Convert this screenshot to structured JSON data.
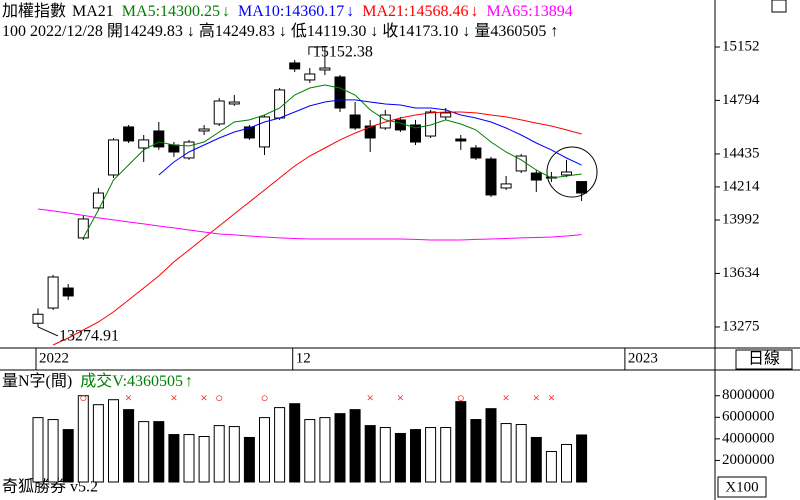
{
  "chart_data": {
    "type": "candlestick",
    "title": "加權指數",
    "subtitle": "MA21",
    "info": [
      "100",
      "2022/12/28",
      "開14249.83",
      "↓",
      "高14249.83",
      "↓",
      "低14119.30",
      "↓",
      "收14173.10",
      "↓",
      "量4360505",
      "↑"
    ],
    "period_label": "日線",
    "high_label": "15152.38",
    "low_label": "13274.91",
    "categories": [
      "2022",
      null,
      null,
      null,
      null,
      null,
      null,
      null,
      null,
      null,
      null,
      null,
      null,
      null,
      null,
      null,
      null,
      "12",
      null,
      null,
      null,
      null,
      null,
      null,
      null,
      null,
      null,
      null,
      null,
      null,
      null,
      null,
      null,
      null,
      null,
      null,
      null,
      null,
      null,
      "2023",
      null,
      null,
      null,
      null,
      null
    ],
    "open": [
      13300,
      13402,
      13536,
      13872,
      14073,
      14294,
      14616,
      14475,
      14589,
      14495,
      14408,
      14589,
      14636,
      14770,
      14616,
      14482,
      14676,
      15045,
      14931,
      14998,
      14951,
      14696,
      14622,
      14609,
      14663,
      14629,
      14555,
      14683,
      14535,
      14475,
      14401,
      14207,
      14321,
      14307,
      14274,
      14294,
      14249.83,
      null,
      null,
      null,
      null,
      null,
      null,
      null,
      null
    ],
    "high": [
      13400,
      13624,
      13563,
      14026,
      14207,
      14542,
      14629,
      14562,
      14649,
      14515,
      14529,
      14629,
      14810,
      14830,
      14629,
      14696,
      14877,
      15065,
      15011,
      15152.38,
      14964,
      14783,
      14663,
      14730,
      14683,
      14663,
      14730,
      14743,
      14562,
      14495,
      14415,
      14287,
      14435,
      14327,
      14314,
      14395,
      14249.83,
      null,
      null,
      null,
      null,
      null,
      null,
      null,
      null
    ],
    "low": [
      13274.91,
      13389,
      13456,
      13858,
      14059,
      14274,
      14508,
      14381,
      14462,
      14415,
      14395,
      14562,
      14622,
      14757,
      14529,
      14428,
      14663,
      14984,
      14911,
      14964,
      14716,
      14596,
      14448,
      14596,
      14582,
      14495,
      14542,
      14663,
      14462,
      14395,
      14146,
      14193,
      14307,
      14180,
      14247,
      14280,
      14119.3,
      null,
      null,
      null,
      null,
      null,
      null,
      null,
      null
    ],
    "close": [
      13360,
      13610,
      13483,
      13999,
      14173,
      14529,
      14522,
      14529,
      14482,
      14448,
      14515,
      14602,
      14790,
      14783,
      14542,
      14683,
      14864,
      15005,
      14971,
      15011,
      14743,
      14609,
      14542,
      14696,
      14596,
      14515,
      14716,
      14710,
      14522,
      14408,
      14160,
      14234,
      14421,
      14260,
      14280,
      14314,
      14173.1,
      null,
      null,
      null,
      null,
      null,
      null,
      null,
      null
    ],
    "up_color": "#ffffff",
    "down_color": "#000000",
    "series": [
      {
        "name": "MA5",
        "label": "MA5:14300.25",
        "arrow": "↓",
        "color": "#008000",
        "values": [
          null,
          null,
          null,
          13872,
          14059,
          14260,
          14361,
          14462,
          14515,
          14495,
          14488,
          14515,
          14582,
          14649,
          14663,
          14696,
          14743,
          14830,
          14877,
          14897,
          14877,
          14830,
          14730,
          14663,
          14642,
          14609,
          14629,
          14663,
          14636,
          14596,
          14515,
          14448,
          14395,
          14327,
          14274,
          14287,
          14300.25,
          null,
          null,
          null,
          null,
          null,
          null,
          null,
          null
        ]
      },
      {
        "name": "MA10",
        "label": "MA10:14360.17",
        "arrow": "↓",
        "color": "#0000ff",
        "values": [
          null,
          null,
          null,
          null,
          null,
          null,
          null,
          null,
          14294,
          14381,
          14448,
          14495,
          14542,
          14582,
          14609,
          14649,
          14676,
          14716,
          14757,
          14783,
          14797,
          14797,
          14783,
          14770,
          14763,
          14743,
          14743,
          14730,
          14696,
          14676,
          14649,
          14609,
          14562,
          14508,
          14462,
          14408,
          14360.17,
          null,
          null,
          null,
          null,
          null,
          null,
          null,
          null
        ]
      },
      {
        "name": "MA21",
        "label": "MA21:14568.46",
        "arrow": "↓",
        "color": "#ff0000",
        "values": [
          null,
          13154,
          13201,
          13255,
          13308,
          13376,
          13456,
          13536,
          13617,
          13711,
          13791,
          13872,
          13952,
          14033,
          14113,
          14193,
          14274,
          14354,
          14421,
          14475,
          14529,
          14575,
          14616,
          14649,
          14676,
          14696,
          14710,
          14716,
          14716,
          14710,
          14696,
          14683,
          14663,
          14642,
          14622,
          14596,
          14568.46,
          null,
          null,
          null,
          null,
          null,
          null,
          null,
          null
        ]
      },
      {
        "name": "MA65",
        "label": "MA65:13894",
        "color": "#ff00ff",
        "values": [
          14066,
          14053,
          14039,
          14023,
          14006,
          13993,
          13979,
          13966,
          13952,
          13939,
          13925,
          13912,
          13898,
          13892,
          13885,
          13878,
          13872,
          13868,
          13865,
          13865,
          13865,
          13865,
          13865,
          13865,
          13865,
          13862,
          13858,
          13858,
          13858,
          13862,
          13865,
          13868,
          13872,
          13875,
          13878,
          13885,
          13894,
          null,
          null,
          null,
          null,
          null,
          null,
          null,
          null
        ]
      }
    ],
    "ylim": [
      13134,
      15467
    ],
    "yticks": [
      13275,
      13634,
      13992,
      14214,
      14435,
      14794,
      15152
    ],
    "volume": {
      "title": "量N字(間)",
      "label": "成交V:4360505",
      "arrow": "↑",
      "label_color": "#008000",
      "values": [
        5970000,
        5790000,
        4860000,
        8000000,
        7170000,
        7630000,
        6710000,
        5600000,
        5600000,
        4400000,
        4400000,
        4220000,
        5230000,
        5140000,
        4130000,
        5970000,
        6900000,
        7260000,
        5790000,
        5970000,
        6340000,
        6710000,
        5230000,
        5050000,
        4500000,
        4860000,
        5050000,
        5050000,
        7450000,
        5790000,
        6800000,
        5420000,
        5330000,
        4130000,
        2830000,
        3480000,
        4360505,
        null,
        null,
        null,
        null,
        null,
        null,
        null,
        null
      ],
      "signals": [
        null,
        null,
        null,
        "○",
        null,
        null,
        "×",
        null,
        null,
        "×",
        null,
        "×",
        "○",
        null,
        null,
        "○",
        null,
        null,
        null,
        null,
        null,
        null,
        "×",
        null,
        "×",
        null,
        null,
        null,
        "○",
        null,
        null,
        "×",
        null,
        "×",
        "×",
        null,
        null,
        null,
        null,
        null,
        null,
        null,
        null,
        null,
        null
      ],
      "signal_color": "#ff0000",
      "ylim": [
        0,
        10200000
      ],
      "yticks": [
        2000000,
        4000000,
        6000000,
        8000000
      ],
      "unit_label": "X100"
    },
    "footer": "奇狐勝券 v5.2"
  }
}
